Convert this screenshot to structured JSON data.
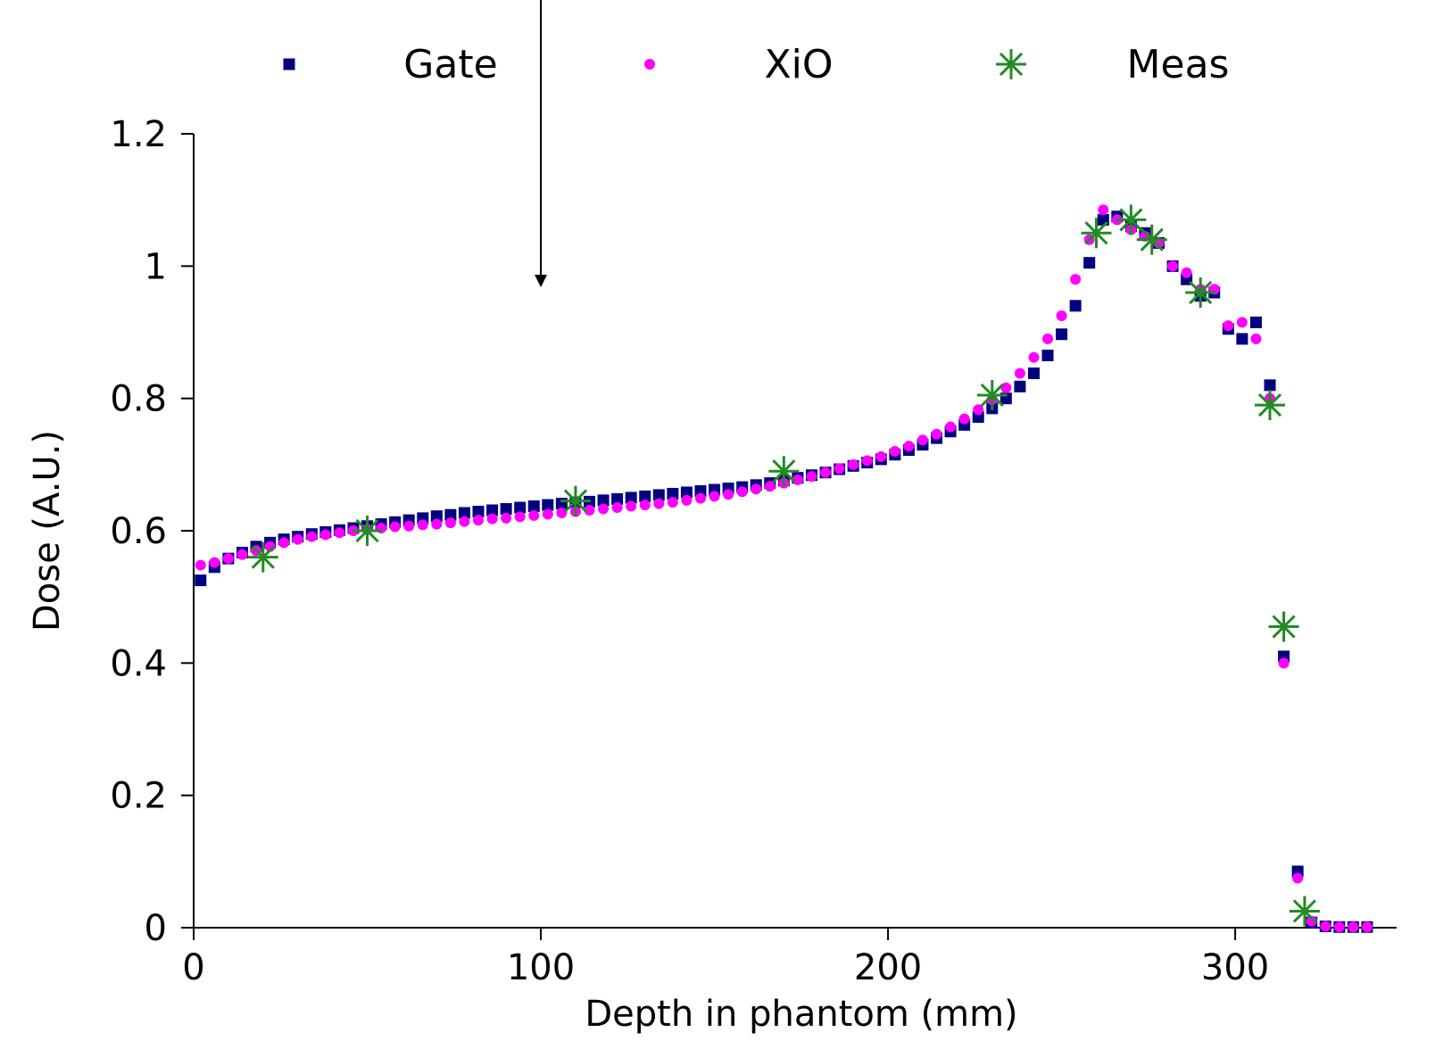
{
  "chart_data": {
    "type": "scatter",
    "title": "",
    "xlabel": "Depth in phantom (mm)",
    "ylabel": "Dose (A.U.)",
    "xlim": [
      0,
      340
    ],
    "ylim": [
      0,
      1.2
    ],
    "x_ticks": [
      0,
      100,
      200,
      300
    ],
    "y_ticks": [
      0,
      0.2,
      0.4,
      0.6,
      0.8,
      1,
      1.2
    ],
    "x_tick_labels": [
      "0",
      "100",
      "200",
      "300"
    ],
    "y_tick_labels": [
      "0",
      "0.2",
      "0.4",
      "0.6",
      "0.8",
      "1",
      "1.2"
    ],
    "grid": false,
    "legend_position": "top",
    "annotation": {
      "type": "arrow",
      "x": 100,
      "direction": "down"
    },
    "series": [
      {
        "name": "Gate",
        "marker": "square",
        "color": "#000080",
        "x": [
          2,
          6,
          10,
          14,
          18,
          22,
          26,
          30,
          34,
          38,
          42,
          46,
          50,
          54,
          58,
          62,
          66,
          70,
          74,
          78,
          82,
          86,
          90,
          94,
          98,
          102,
          106,
          110,
          114,
          118,
          122,
          126,
          130,
          134,
          138,
          142,
          146,
          150,
          154,
          158,
          162,
          166,
          170,
          174,
          178,
          182,
          186,
          190,
          194,
          198,
          202,
          206,
          210,
          214,
          218,
          222,
          226,
          230,
          234,
          238,
          242,
          246,
          250,
          254,
          258,
          262,
          266,
          270,
          274,
          278,
          282,
          286,
          290,
          294,
          298,
          302,
          306,
          310,
          314,
          318,
          322,
          326,
          330,
          334,
          338
        ],
        "y": [
          0.525,
          0.545,
          0.558,
          0.567,
          0.576,
          0.582,
          0.587,
          0.591,
          0.595,
          0.598,
          0.601,
          0.604,
          0.607,
          0.61,
          0.613,
          0.616,
          0.619,
          0.622,
          0.624,
          0.627,
          0.629,
          0.631,
          0.633,
          0.635,
          0.637,
          0.639,
          0.641,
          0.643,
          0.644,
          0.646,
          0.648,
          0.65,
          0.652,
          0.654,
          0.656,
          0.658,
          0.66,
          0.662,
          0.664,
          0.666,
          0.669,
          0.672,
          0.676,
          0.68,
          0.684,
          0.688,
          0.693,
          0.698,
          0.703,
          0.708,
          0.715,
          0.722,
          0.73,
          0.74,
          0.75,
          0.76,
          0.772,
          0.785,
          0.8,
          0.818,
          0.838,
          0.865,
          0.897,
          0.94,
          1.005,
          1.07,
          1.075,
          1.06,
          1.05,
          1.035,
          1.0,
          0.98,
          0.955,
          0.96,
          0.905,
          0.89,
          0.915,
          0.82,
          0.41,
          0.085,
          0.008,
          0.002,
          0.001,
          0.001,
          0.001
        ]
      },
      {
        "name": "XiO",
        "marker": "circle",
        "color": "#ff00ff",
        "x": [
          2,
          6,
          10,
          14,
          18,
          22,
          26,
          30,
          34,
          38,
          42,
          46,
          50,
          54,
          58,
          62,
          66,
          70,
          74,
          78,
          82,
          86,
          90,
          94,
          98,
          102,
          106,
          110,
          114,
          118,
          122,
          126,
          130,
          134,
          138,
          142,
          146,
          150,
          154,
          158,
          162,
          166,
          170,
          174,
          178,
          182,
          186,
          190,
          194,
          198,
          202,
          206,
          210,
          214,
          218,
          222,
          226,
          230,
          234,
          238,
          242,
          246,
          250,
          254,
          258,
          262,
          266,
          270,
          274,
          278,
          282,
          286,
          290,
          294,
          298,
          302,
          306,
          310,
          314,
          318,
          322,
          326,
          330,
          334,
          338
        ],
        "y": [
          0.548,
          0.552,
          0.558,
          0.564,
          0.57,
          0.576,
          0.582,
          0.587,
          0.591,
          0.594,
          0.597,
          0.6,
          0.602,
          0.604,
          0.606,
          0.607,
          0.609,
          0.61,
          0.612,
          0.614,
          0.616,
          0.618,
          0.619,
          0.621,
          0.623,
          0.625,
          0.627,
          0.629,
          0.631,
          0.633,
          0.635,
          0.637,
          0.639,
          0.641,
          0.643,
          0.646,
          0.649,
          0.652,
          0.655,
          0.659,
          0.663,
          0.667,
          0.672,
          0.677,
          0.682,
          0.688,
          0.694,
          0.7,
          0.706,
          0.712,
          0.72,
          0.728,
          0.737,
          0.746,
          0.757,
          0.769,
          0.783,
          0.798,
          0.816,
          0.838,
          0.862,
          0.89,
          0.925,
          0.98,
          1.04,
          1.085,
          1.07,
          1.055,
          1.045,
          1.035,
          1.0,
          0.99,
          0.965,
          0.965,
          0.91,
          0.915,
          0.89,
          0.8,
          0.4,
          0.075,
          0.01,
          0.002,
          0.001,
          0.001,
          0.001
        ]
      },
      {
        "name": "Meas",
        "marker": "asterisk",
        "color": "#228b22",
        "x": [
          20,
          50,
          110,
          170,
          230,
          260,
          270,
          276,
          290,
          310,
          314,
          320
        ],
        "y": [
          0.56,
          0.6,
          0.645,
          0.69,
          0.805,
          1.05,
          1.07,
          1.04,
          0.96,
          0.79,
          0.455,
          0.025
        ]
      }
    ]
  }
}
